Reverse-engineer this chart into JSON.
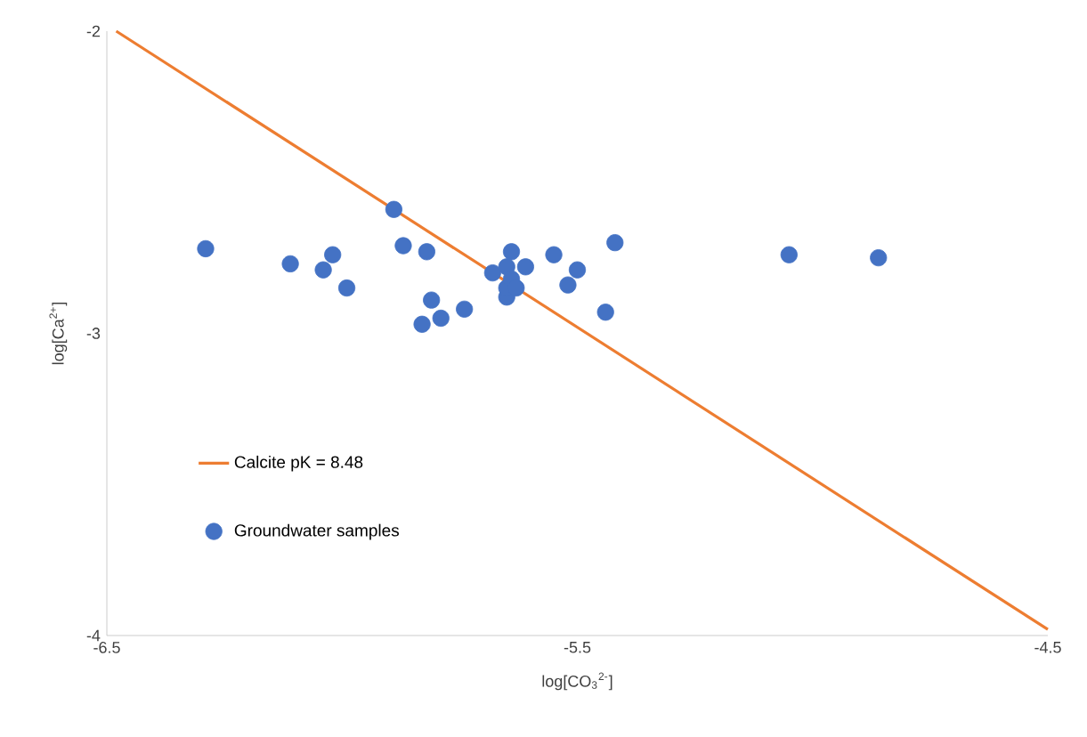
{
  "chart_data": {
    "type": "scatter",
    "xlabel": "log[CO$_{3}$$^{2-}$]",
    "ylabel": "log[Ca$^{2+}$]",
    "xlim": [
      -6.5,
      -4.5
    ],
    "ylim": [
      -4,
      -2
    ],
    "xticks": [
      -6.5,
      -5.5,
      -4.5
    ],
    "yticks": [
      -4,
      -3,
      -2
    ],
    "grid": false,
    "legend": "bottom left",
    "series": [
      {
        "name": "Calcite pK = 8.48",
        "type": "line",
        "color": "#ed7d31",
        "marker": "none",
        "x": [
          -6.48,
          -4.5
        ],
        "values": [
          -2.0,
          -3.98
        ]
      },
      {
        "name": "Groundwater samples",
        "color": "#4472c4",
        "marker": "circle",
        "x": [
          -6.29,
          -6.11,
          -6.04,
          -6.02,
          -5.99,
          -5.89,
          -5.87,
          -5.82,
          -5.83,
          -5.81,
          -5.79,
          -5.74,
          -5.68,
          -5.65,
          -5.65,
          -5.65,
          -5.64,
          -5.63,
          -5.64,
          -5.61,
          -5.55,
          -5.52,
          -5.5,
          -5.44,
          -5.42,
          -5.05,
          -4.86
        ],
        "values": [
          -2.72,
          -2.77,
          -2.79,
          -2.74,
          -2.85,
          -2.59,
          -2.71,
          -2.73,
          -2.97,
          -2.89,
          -2.95,
          -2.92,
          -2.8,
          -2.78,
          -2.88,
          -2.85,
          -2.82,
          -2.85,
          -2.73,
          -2.78,
          -2.74,
          -2.84,
          -2.79,
          -2.93,
          -2.7,
          -2.74,
          -2.75
        ]
      }
    ]
  }
}
